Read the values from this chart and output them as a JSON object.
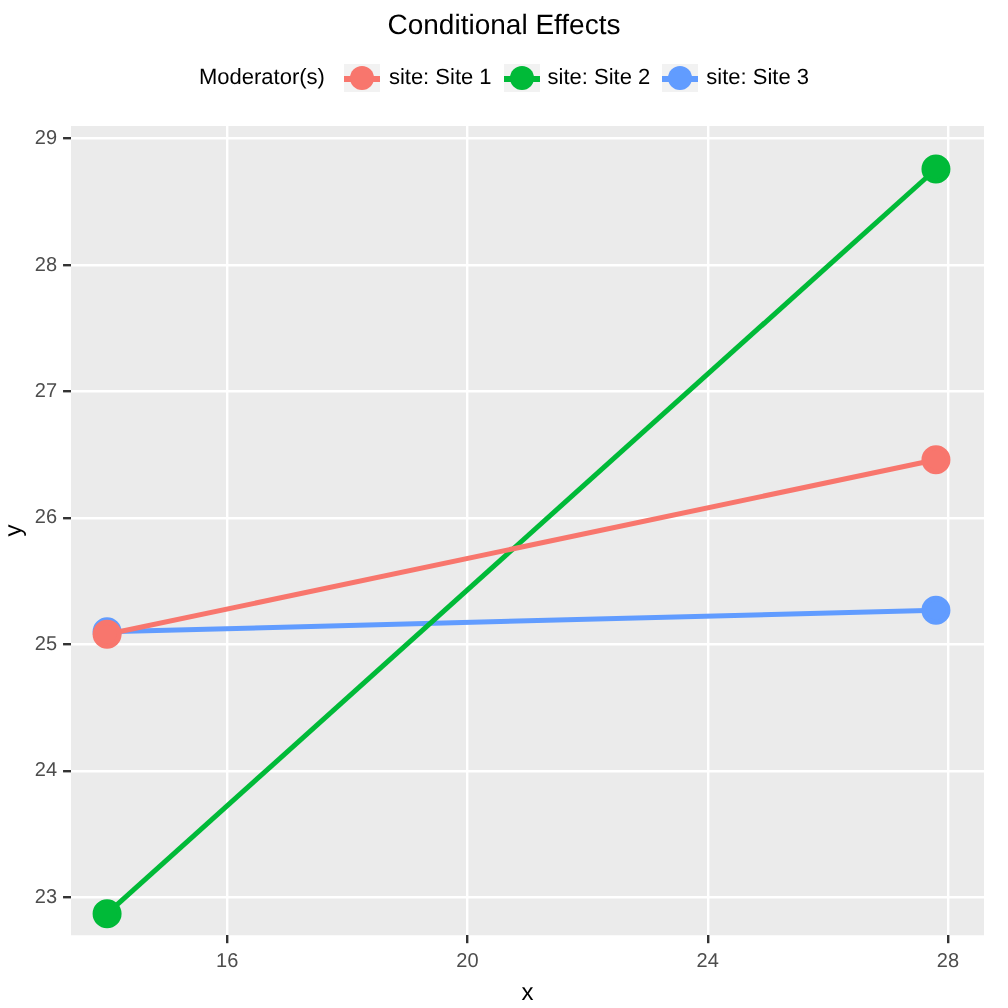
{
  "chart_data": {
    "type": "line",
    "title": "Conditional Effects",
    "xlabel": "x",
    "ylabel": "y",
    "legend_title": "Moderator(s)",
    "legend": "top",
    "grid": true,
    "marker": "circle",
    "line_style": "solid",
    "xlim": [
      13.4,
      28.6
    ],
    "xticks": [
      16,
      20,
      24,
      28
    ],
    "ylim": [
      22.7,
      29.1
    ],
    "yticks": [
      23,
      24,
      25,
      26,
      27,
      28,
      29
    ],
    "x": [
      14.0,
      27.8
    ],
    "series": [
      {
        "name": "site: Site 1",
        "color": "#f8766d",
        "values": [
          25.08,
          26.46
        ]
      },
      {
        "name": "site: Site 2",
        "color": "#00ba38",
        "values": [
          22.87,
          28.76
        ]
      },
      {
        "name": "site: Site 3",
        "color": "#619cff",
        "values": [
          25.1,
          25.27
        ]
      }
    ]
  }
}
